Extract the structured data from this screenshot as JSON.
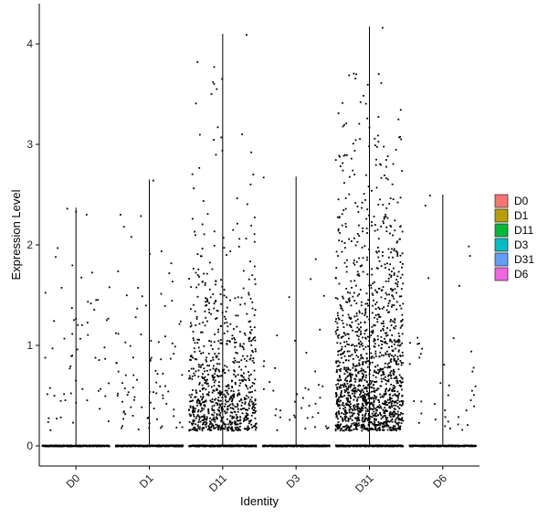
{
  "chart_data": {
    "type": "violin-jitter",
    "title": "",
    "xlabel": "Identity",
    "ylabel": "Expression Level",
    "ylim": [
      -0.2,
      4.4
    ],
    "yticks": [
      0,
      1,
      2,
      3,
      4
    ],
    "grid": false,
    "legend_position": "right",
    "categories": [
      "D0",
      "D1",
      "D11",
      "D3",
      "D31",
      "D6"
    ],
    "series": [
      {
        "name": "D0",
        "color": "#F8766D",
        "max": 2.37,
        "n_zero": 300,
        "n_pos": 60,
        "mean_pos": 1.05,
        "extremes": [
          2.36,
          2.33,
          2.3
        ]
      },
      {
        "name": "D1",
        "color": "#B79F00",
        "max": 2.65,
        "n_zero": 300,
        "n_pos": 90,
        "mean_pos": 0.95,
        "extremes": [
          2.64,
          2.3,
          2.18
        ]
      },
      {
        "name": "D11",
        "color": "#00BA38",
        "max": 4.1,
        "n_zero": 300,
        "n_pos": 850,
        "mean_pos": 0.7,
        "extremes": [
          4.09,
          3.82,
          3.77,
          3.65,
          3.62,
          3.55,
          3.5,
          3.17
        ]
      },
      {
        "name": "D3",
        "color": "#00BFC4",
        "max": 2.68,
        "n_zero": 300,
        "n_pos": 40,
        "mean_pos": 0.55,
        "extremes": [
          2.67,
          1.66,
          1.48
        ]
      },
      {
        "name": "D31",
        "color": "#619CFF",
        "max": 4.17,
        "n_zero": 300,
        "n_pos": 1500,
        "mean_pos": 0.95,
        "extremes": [
          4.16,
          3.31,
          3.05,
          2.98,
          2.74,
          2.7
        ]
      },
      {
        "name": "D6",
        "color": "#F564E3",
        "max": 2.5,
        "n_zero": 300,
        "n_pos": 40,
        "mean_pos": 0.9,
        "extremes": [
          2.49,
          2.39,
          1.89
        ]
      }
    ]
  },
  "legend": {
    "items": [
      {
        "label": "D0",
        "color": "#F8766D"
      },
      {
        "label": "D1",
        "color": "#B79F00"
      },
      {
        "label": "D11",
        "color": "#00BA38"
      },
      {
        "label": "D3",
        "color": "#00BFC4"
      },
      {
        "label": "D31",
        "color": "#619CFF"
      },
      {
        "label": "D6",
        "color": "#F564E3"
      }
    ]
  }
}
